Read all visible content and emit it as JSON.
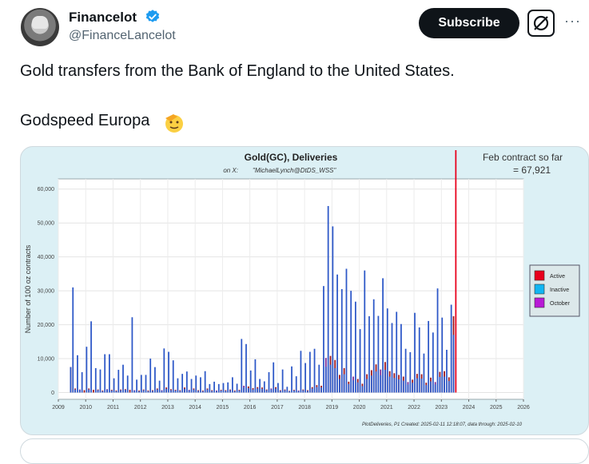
{
  "post": {
    "author_name": "Financelot",
    "handle": "@FinanceLancelot",
    "subscribe_label": "Subscribe",
    "more_label": "···",
    "text_line1": "Gold transfers from the Bank of England to the United States.",
    "text_line2": "Godspeed Europa",
    "icons": [
      "avatar",
      "verified-badge-icon",
      "grok-icon",
      "more-icon",
      "saluting-face-emoji"
    ],
    "colors": {
      "verified": "#1d9bf0",
      "button": "#0f1419"
    }
  },
  "chart_data": {
    "type": "bar",
    "title": "Gold(GC), Deliveries",
    "subtitle_prefix": "on X:",
    "subtitle_handle": "\"MichaelLynch@DtDS_WSS\"",
    "annotation_line1": "Feb contract so far",
    "annotation_line2": "= 67,921",
    "ylabel": "Number of 100 oz contracts",
    "footer": "PlotDeliveries, P1 Created: 2025-02-11 12:18:07, data through: 2025-02-10",
    "xlim": [
      2009,
      2026
    ],
    "ylim": [
      -2000,
      63000
    ],
    "yticks": [
      0,
      10000,
      20000,
      30000,
      40000,
      50000,
      60000
    ],
    "ytick_labels": [
      "0",
      "10,000",
      "20,000",
      "30,000",
      "40,000",
      "50,000",
      "60,000"
    ],
    "xticks": [
      2009,
      2010,
      2011,
      2012,
      2013,
      2014,
      2015,
      2016,
      2017,
      2018,
      2019,
      2020,
      2021,
      2022,
      2023,
      2024,
      2025,
      2026
    ],
    "legend_position": "right",
    "legend": [
      {
        "name": "Active",
        "color": "#e8001c"
      },
      {
        "name": "Inactive",
        "color": "#12b5f2"
      },
      {
        "name": "October",
        "color": "#b81ad6"
      }
    ],
    "bar_colors": {
      "active": "#9e1518",
      "inactive": "#2d58c8",
      "october": "#7a2894"
    },
    "current_bar_color": "#e8001c",
    "x_start": 2009.45,
    "x_step": 0.0833,
    "active_months": [
      2,
      4,
      6,
      8,
      12
    ],
    "october_month": 10,
    "values": [
      7500,
      31000,
      1200,
      11000,
      900,
      6000,
      700,
      13500,
      1200,
      21000,
      800,
      7200,
      900,
      6800,
      600,
      11300,
      1000,
      11300,
      800,
      4200,
      600,
      6700,
      900,
      8200,
      1000,
      5000,
      800,
      22200,
      700,
      3800,
      600,
      5200,
      900,
      5200,
      600,
      10000,
      700,
      7500,
      1200,
      3500,
      700,
      13000,
      1500,
      12000,
      1000,
      9500,
      800,
      4200,
      700,
      5500,
      1500,
      6200,
      800,
      4000,
      1200,
      5000,
      700,
      4500,
      600,
      6300,
      1200,
      2500,
      700,
      3200,
      600,
      2500,
      800,
      2800,
      700,
      3000,
      900,
      4500,
      600,
      2600,
      800,
      15800,
      2000,
      14300,
      1800,
      6500,
      1300,
      9800,
      1600,
      4000,
      1500,
      3300,
      900,
      6000,
      1200,
      8900,
      1600,
      2800,
      700,
      6800,
      900,
      1700,
      500,
      7700,
      800,
      4800,
      600,
      12300,
      900,
      8700,
      700,
      12000,
      1600,
      12900,
      2200,
      8200,
      2000,
      31400,
      10200,
      55000,
      10800,
      49000,
      9600,
      34800,
      5200,
      30500,
      7200,
      36500,
      3200,
      30000,
      4700,
      26800,
      4000,
      18700,
      2600,
      36000,
      5400,
      22500,
      6600,
      27500,
      8300,
      22600,
      6800,
      33700,
      9000,
      24800,
      6300,
      20500,
      5700,
      23800,
      5200,
      20200,
      4700,
      12900,
      3100,
      11900,
      3800,
      23500,
      5500,
      19200,
      5400,
      11500,
      2900,
      21100,
      4400,
      17700,
      3100,
      30700,
      6100,
      22100,
      6300,
      12600,
      4500,
      25900,
      22500,
      67921
    ],
    "inactive_overlay": [
      7500,
      0,
      900,
      0,
      700,
      0,
      0,
      1800,
      900,
      0,
      0,
      0,
      700,
      0,
      400,
      0,
      800,
      0,
      600,
      0,
      400,
      0,
      700,
      0,
      800,
      0,
      0,
      0,
      500,
      0,
      400,
      0,
      700,
      0,
      400,
      0,
      500,
      0,
      900,
      0,
      500,
      0,
      1100,
      0,
      700,
      0,
      600,
      0,
      500,
      0,
      1100,
      0,
      600,
      0,
      900,
      0,
      500,
      0,
      400,
      0,
      900,
      0,
      500,
      0,
      400,
      0,
      600,
      0,
      500,
      0,
      700,
      0,
      400,
      0,
      600,
      0,
      1500,
      6800,
      1300,
      0,
      900,
      0,
      1200,
      0,
      1100,
      0,
      700,
      0,
      900,
      0,
      1200,
      0,
      500,
      0,
      700,
      0,
      400,
      0,
      600,
      0,
      400,
      0,
      700,
      0,
      500,
      0,
      1200,
      0,
      1600,
      0,
      1500,
      0,
      7600,
      0,
      8200,
      0,
      7200,
      0,
      4000,
      0,
      5400,
      0,
      2500,
      0,
      3600,
      0,
      3000,
      0,
      1900,
      0,
      4000,
      0,
      5000,
      0,
      6200,
      0,
      5100,
      0,
      6700,
      0,
      4700,
      0,
      4300,
      0,
      3900,
      0,
      3500,
      0,
      2400,
      0,
      2900,
      0,
      4200,
      0,
      4100,
      0,
      2200,
      0,
      3300,
      0,
      2400,
      0,
      4600,
      0,
      4700,
      0,
      3400,
      0,
      17000,
      0
    ]
  }
}
